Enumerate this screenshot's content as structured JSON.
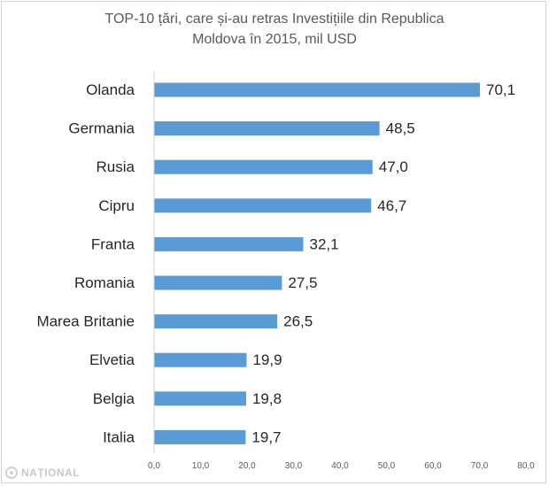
{
  "chart_data": {
    "type": "bar",
    "orientation": "horizontal",
    "title_lines": [
      "TOP-10 țări, care și-au retras Investițiile din Republica",
      "Moldova în 2015, mil USD"
    ],
    "categories": [
      "Olanda",
      "Germania",
      "Rusia",
      "Cipru",
      "Franta",
      "Romania",
      "Marea Britanie",
      "Elvetia",
      "Belgia",
      "Italia"
    ],
    "values": [
      70.1,
      48.5,
      47.0,
      46.7,
      32.1,
      27.5,
      26.5,
      19.9,
      19.8,
      19.7
    ],
    "value_labels": [
      "70,1",
      "48,5",
      "47,0",
      "46,7",
      "32,1",
      "27,5",
      "26,5",
      "19,9",
      "19,8",
      "19,7"
    ],
    "xlim": [
      0,
      80
    ],
    "x_ticks": [
      0,
      10,
      20,
      30,
      40,
      50,
      60,
      70,
      80
    ],
    "x_tick_labels": [
      "0,0",
      "10,0",
      "20,0",
      "30,0",
      "40,0",
      "50,0",
      "60,0",
      "70,0",
      "80,0"
    ],
    "grid": false,
    "legend": "none",
    "bar_color": "#5b9bd5"
  },
  "watermark": {
    "text": "NAȚIONAL",
    "icon": "national-logo-icon"
  }
}
